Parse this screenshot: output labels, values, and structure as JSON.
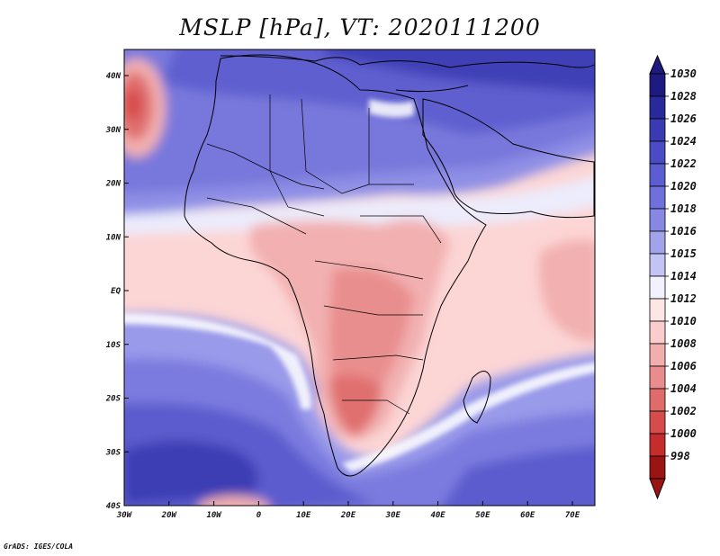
{
  "title": "MSLP [hPa], VT: 2020111200",
  "credit": "GrADS: IGES/COLA",
  "map": {
    "lon_ticks": [
      "30W",
      "20W",
      "10W",
      "0",
      "10E",
      "20E",
      "30E",
      "40E",
      "50E",
      "60E",
      "70E"
    ],
    "lat_ticks": [
      "40N",
      "30N",
      "20N",
      "10N",
      "EQ",
      "10S",
      "20S",
      "30S",
      "40S"
    ],
    "lon_range_deg": [
      -30,
      75
    ],
    "lat_range_deg": [
      -40,
      45
    ]
  },
  "colorbar": {
    "levels": [
      "1030",
      "1028",
      "1026",
      "1024",
      "1022",
      "1020",
      "1018",
      "1016",
      "1015",
      "1014",
      "1012",
      "1010",
      "1008",
      "1006",
      "1004",
      "1002",
      "1000",
      "998"
    ],
    "colors": [
      "#1f1a80",
      "#28299a",
      "#3a3bb0",
      "#4b4bc6",
      "#5d5dd2",
      "#6f70dc",
      "#8787e4",
      "#a3a3ec",
      "#c4c4f4",
      "#f2f2fe",
      "#fde6e6",
      "#fbcccc",
      "#f2adad",
      "#e98c8c",
      "#e06b6b",
      "#d64c4c",
      "#c52d2d",
      "#9a1414"
    ],
    "colors_base": "#9a1414"
  }
}
